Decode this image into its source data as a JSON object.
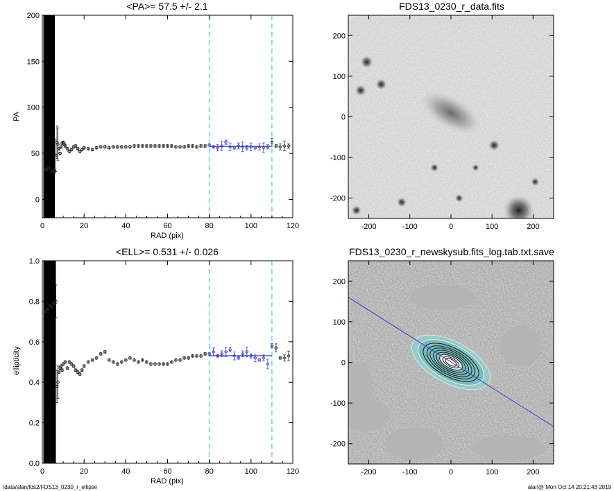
{
  "chart_data": [
    {
      "id": "pa",
      "type": "scatter",
      "title": "<PA>=  57.5 +/-   2.1",
      "xlabel": "RAD (pix)",
      "ylabel": "PA",
      "xlim": [
        0,
        120
      ],
      "ylim": [
        -20,
        200
      ],
      "xticks": [
        "0",
        "20",
        "40",
        "60",
        "80",
        "100",
        "120"
      ],
      "xtick_values": [
        0,
        20,
        40,
        60,
        80,
        100,
        120
      ],
      "yticks": [
        "0",
        "50",
        "100",
        "150",
        "200"
      ],
      "ytick_values": [
        0,
        50,
        100,
        150,
        200
      ],
      "vlines": [
        80,
        110
      ],
      "fit": {
        "x": [
          80,
          110
        ],
        "y": 57.5,
        "color": "#2a2ab8"
      },
      "blocked_region": [
        0.5,
        6
      ],
      "series": [
        {
          "points": [
            [
              1.5,
              32
            ],
            [
              2.5,
              33
            ],
            [
              3.5,
              34
            ],
            [
              4.5,
              30
            ],
            [
              5.5,
              31
            ],
            [
              6,
              30
            ],
            [
              6.5,
              48
            ],
            [
              7,
              62
            ],
            [
              7.5,
              60
            ],
            [
              8,
              55
            ],
            [
              8.5,
              50
            ],
            [
              9,
              57
            ],
            [
              9.5,
              61
            ],
            [
              10,
              62
            ],
            [
              10.5,
              60
            ],
            [
              11,
              58
            ],
            [
              12,
              55
            ],
            [
              13,
              52
            ],
            [
              14,
              54
            ],
            [
              15,
              57
            ],
            [
              16,
              58
            ],
            [
              17,
              55
            ],
            [
              18,
              52
            ],
            [
              19,
              54
            ],
            [
              20,
              56
            ],
            [
              22,
              55
            ],
            [
              24,
              54
            ],
            [
              26,
              56
            ],
            [
              28,
              57
            ],
            [
              30,
              57
            ],
            [
              32,
              56
            ],
            [
              34,
              57
            ],
            [
              36,
              57
            ],
            [
              38,
              57
            ],
            [
              40,
              57
            ],
            [
              42,
              57
            ],
            [
              44,
              58
            ],
            [
              46,
              58
            ],
            [
              48,
              58
            ],
            [
              50,
              58
            ],
            [
              52,
              58
            ],
            [
              54,
              58
            ],
            [
              56,
              58
            ],
            [
              58,
              58
            ],
            [
              60,
              58
            ],
            [
              62,
              58
            ],
            [
              64,
              57
            ],
            [
              66,
              57
            ],
            [
              68,
              57
            ],
            [
              70,
              58
            ],
            [
              72,
              58
            ],
            [
              74,
              57
            ],
            [
              76,
              58
            ],
            [
              78,
              58
            ],
            [
              80,
              59
            ],
            [
              82,
              57
            ],
            [
              84,
              56
            ],
            [
              86,
              58
            ],
            [
              88,
              62
            ],
            [
              90,
              57
            ],
            [
              92,
              56
            ],
            [
              94,
              58
            ],
            [
              96,
              57
            ],
            [
              98,
              56
            ],
            [
              100,
              57
            ],
            [
              102,
              56
            ],
            [
              104,
              57
            ],
            [
              106,
              56
            ],
            [
              108,
              57
            ],
            [
              110,
              62
            ],
            [
              112,
              58
            ],
            [
              114,
              57
            ],
            [
              116,
              58
            ],
            [
              118,
              58
            ]
          ]
        }
      ]
    },
    {
      "id": "ell",
      "type": "scatter",
      "title": "<ELL>= 0.531 +/-  0.026",
      "xlabel": "RAD (pix)",
      "ylabel": "ellipticity",
      "xlim": [
        0,
        120
      ],
      "ylim": [
        0,
        1
      ],
      "xticks": [
        "0",
        "20",
        "40",
        "60",
        "80",
        "100",
        "120"
      ],
      "xtick_values": [
        0,
        20,
        40,
        60,
        80,
        100,
        120
      ],
      "yticks": [
        "0.0",
        "0.2",
        "0.4",
        "0.6",
        "0.8",
        "1.0"
      ],
      "ytick_values": [
        0,
        0.2,
        0.4,
        0.6,
        0.8,
        1.0
      ],
      "vlines": [
        80,
        110
      ],
      "fit": {
        "x": [
          80,
          110
        ],
        "y": 0.531,
        "color": "#2a2ab8"
      },
      "blocked_region": [
        0.5,
        6.5
      ],
      "series": [
        {
          "points": [
            [
              1.5,
              0.75
            ],
            [
              2.5,
              0.76
            ],
            [
              3.5,
              0.78
            ],
            [
              4.5,
              0.77
            ],
            [
              5.5,
              0.79
            ],
            [
              6,
              0.79
            ],
            [
              6.5,
              0.8
            ],
            [
              7,
              0.38
            ],
            [
              7.5,
              0.4
            ],
            [
              8,
              0.45
            ],
            [
              8.5,
              0.47
            ],
            [
              9,
              0.48
            ],
            [
              9.5,
              0.46
            ],
            [
              10,
              0.49
            ],
            [
              11,
              0.5
            ],
            [
              12,
              0.47
            ],
            [
              13,
              0.5
            ],
            [
              14,
              0.49
            ],
            [
              15,
              0.48
            ],
            [
              16,
              0.46
            ],
            [
              17,
              0.45
            ],
            [
              18,
              0.44
            ],
            [
              19,
              0.46
            ],
            [
              20,
              0.48
            ],
            [
              22,
              0.5
            ],
            [
              24,
              0.51
            ],
            [
              26,
              0.52
            ],
            [
              28,
              0.54
            ],
            [
              30,
              0.55
            ],
            [
              32,
              0.51
            ],
            [
              34,
              0.5
            ],
            [
              36,
              0.49
            ],
            [
              38,
              0.5
            ],
            [
              40,
              0.51
            ],
            [
              42,
              0.52
            ],
            [
              44,
              0.51
            ],
            [
              46,
              0.5
            ],
            [
              48,
              0.51
            ],
            [
              50,
              0.5
            ],
            [
              52,
              0.49
            ],
            [
              54,
              0.49
            ],
            [
              56,
              0.49
            ],
            [
              58,
              0.49
            ],
            [
              60,
              0.49
            ],
            [
              62,
              0.5
            ],
            [
              64,
              0.51
            ],
            [
              66,
              0.51
            ],
            [
              68,
              0.52
            ],
            [
              70,
              0.52
            ],
            [
              72,
              0.53
            ],
            [
              74,
              0.53
            ],
            [
              76,
              0.53
            ],
            [
              78,
              0.54
            ],
            [
              80,
              0.54
            ],
            [
              82,
              0.55
            ],
            [
              84,
              0.53
            ],
            [
              86,
              0.54
            ],
            [
              88,
              0.55
            ],
            [
              90,
              0.56
            ],
            [
              92,
              0.53
            ],
            [
              94,
              0.52
            ],
            [
              96,
              0.54
            ],
            [
              98,
              0.55
            ],
            [
              100,
              0.53
            ],
            [
              102,
              0.52
            ],
            [
              104,
              0.51
            ],
            [
              106,
              0.52
            ],
            [
              108,
              0.49
            ],
            [
              110,
              0.58
            ],
            [
              112,
              0.57
            ],
            [
              114,
              0.52
            ],
            [
              116,
              0.52
            ],
            [
              118,
              0.53
            ]
          ]
        }
      ]
    },
    {
      "id": "img1",
      "type": "heatmap",
      "title": "FDS13_0230_r_data.fits",
      "xlim": [
        -250,
        250
      ],
      "ylim": [
        -250,
        250
      ],
      "xticks": [
        "-200",
        "-100",
        "0",
        "100",
        "200"
      ],
      "xtick_values": [
        -200,
        -100,
        0,
        100,
        200
      ],
      "yticks": [
        "-200",
        "-100",
        "0",
        "100",
        "200"
      ],
      "ytick_values": [
        -200,
        -100,
        0,
        100,
        200
      ]
    },
    {
      "id": "img2",
      "type": "heatmap",
      "title": "FDS13_0230_r_newskysub.fits_log.tab.txt.save",
      "xlim": [
        -250,
        250
      ],
      "ylim": [
        -250,
        250
      ],
      "xticks": [
        "-200",
        "-100",
        "0",
        "100",
        "200"
      ],
      "xtick_values": [
        -200,
        -100,
        0,
        100,
        200
      ],
      "yticks": [
        "-200",
        "-100",
        "0",
        "100",
        "200"
      ],
      "ytick_values": [
        -200,
        -100,
        0,
        100,
        200
      ]
    }
  ],
  "footer": {
    "left": "/data/alan/fds2/FDS13_0230_r_ellipse",
    "right": "alan@  Mon Oct 14 20:21:43 2019"
  }
}
